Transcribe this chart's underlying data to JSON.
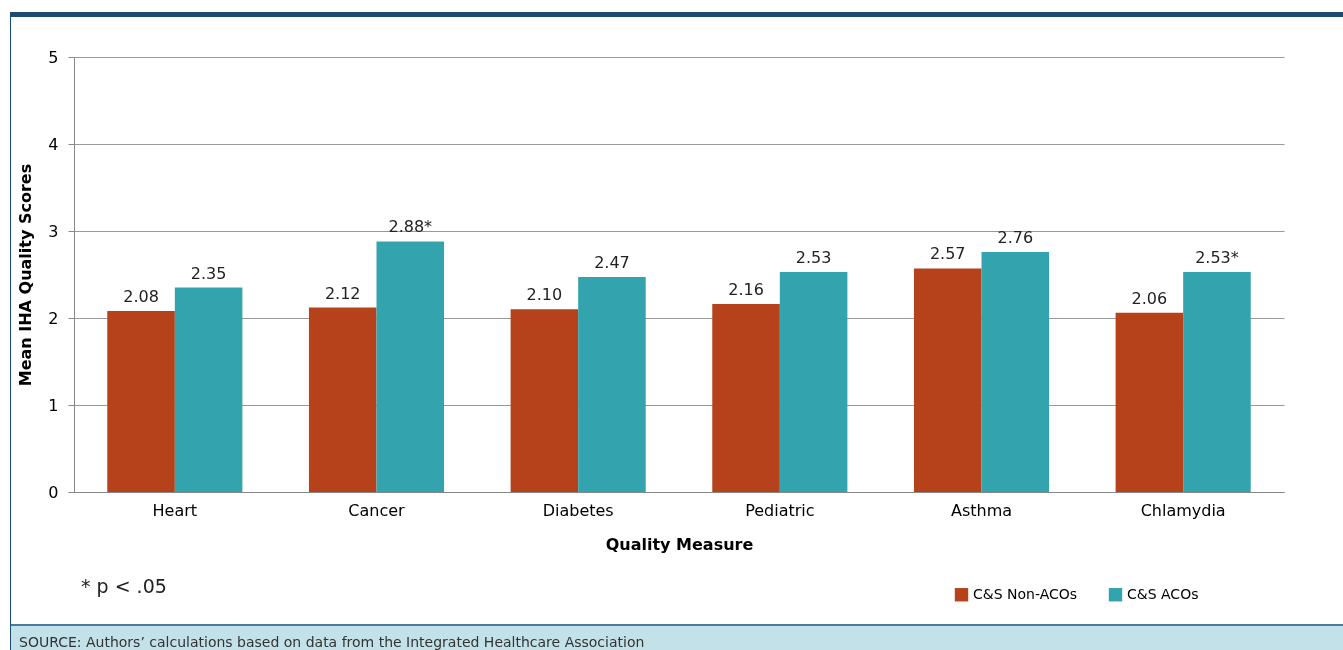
{
  "chart_data": {
    "type": "bar",
    "xlabel": "Quality Measure",
    "ylabel": "Mean IHA Quality Scores",
    "categories": [
      "Heart",
      "Cancer",
      "Diabetes",
      "Pediatric",
      "Asthma",
      "Chlamydia"
    ],
    "series": [
      {
        "name": "C&S Non-ACOs",
        "color": "#b5421a",
        "values": [
          2.08,
          2.12,
          2.1,
          2.16,
          2.57,
          2.06
        ],
        "value_labels": [
          "2.08",
          "2.12",
          "2.10",
          "2.16",
          "2.57",
          "2.06"
        ]
      },
      {
        "name": "C&S ACOs",
        "color": "#33a3ad",
        "values": [
          2.35,
          2.88,
          2.47,
          2.53,
          2.76,
          2.53
        ],
        "value_labels": [
          "2.35",
          "2.88*",
          "2.47",
          "2.53",
          "2.76",
          "2.53*"
        ]
      }
    ],
    "ylim": [
      0,
      5
    ],
    "yticks": [
      0,
      1,
      2,
      3,
      4,
      5
    ],
    "grid": "y",
    "legend": "bottom right",
    "annotations": [
      "* p < .05",
      "SOURCE: Authors’ calculations based on data from the Integrated Healthcare Association"
    ]
  }
}
